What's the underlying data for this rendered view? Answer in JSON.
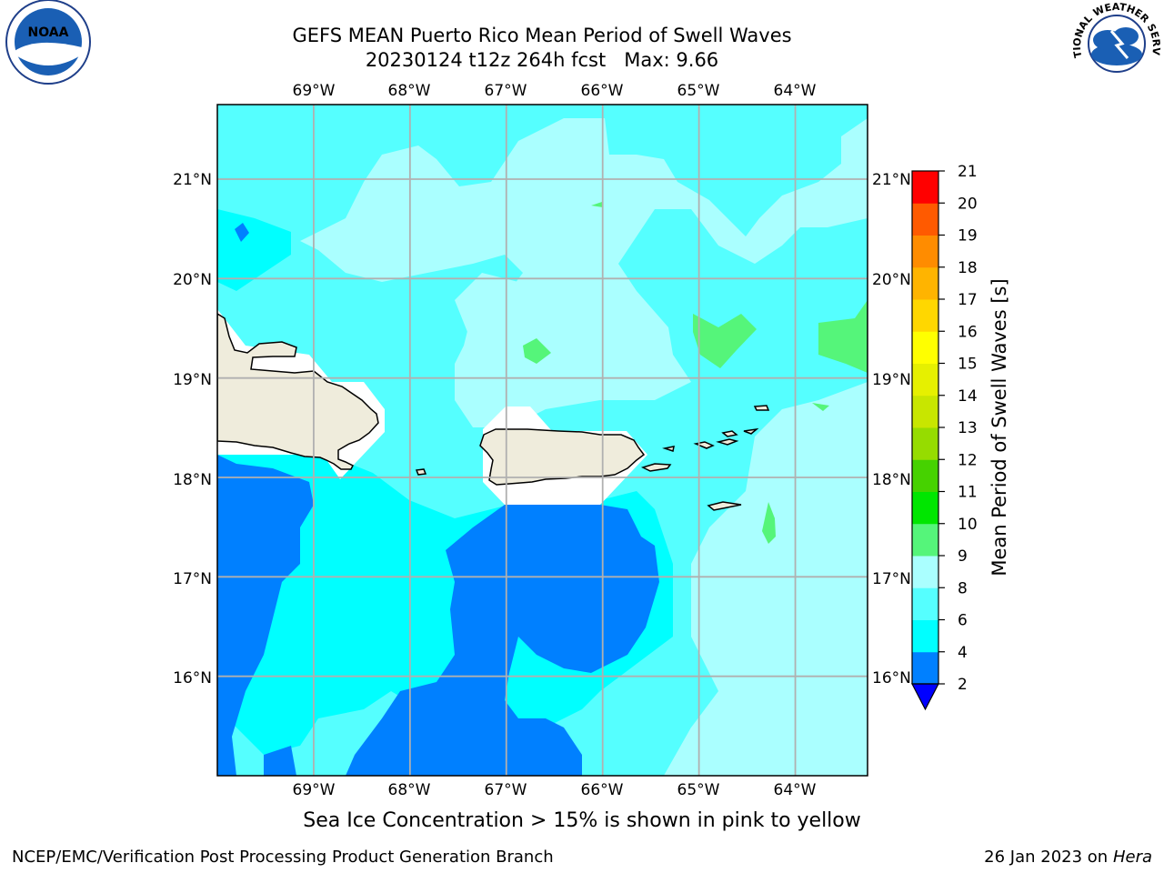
{
  "title": {
    "line1": "GEFS MEAN Puerto Rico Mean Period of Swell Waves",
    "line2": "20230124 t12z 264h fcst   Max: 9.66"
  },
  "logos": {
    "left": {
      "name": "noaa-logo",
      "text": "NOAA"
    },
    "right": {
      "name": "national-weather-service-logo",
      "text": "NATIONAL WEATHER SERVICE"
    }
  },
  "map": {
    "lon_labels": [
      "69°W",
      "68°W",
      "67°W",
      "66°W",
      "65°W",
      "64°W"
    ],
    "lat_labels": [
      "21°N",
      "20°N",
      "19°N",
      "18°N",
      "17°N",
      "16°N"
    ],
    "extent": {
      "lon": [
        -70.0,
        -63.25
      ],
      "lat": [
        15.0,
        21.75
      ]
    },
    "land_color": "#efecdc",
    "grid_color": "#b0b0b0"
  },
  "colorbar": {
    "label": "Mean Period of Swell Waves [s]",
    "ticks": [
      "2",
      "4",
      "6",
      "8",
      "9",
      "10",
      "11",
      "12",
      "13",
      "14",
      "15",
      "16",
      "17",
      "18",
      "19",
      "20",
      "21"
    ],
    "colors": [
      "#0080ff",
      "#00ffff",
      "#55ffff",
      "#aaffff",
      "#55f57a",
      "#2de22d",
      "#00e600",
      "#46d200",
      "#96dc00",
      "#c8e600",
      "#e6f000",
      "#ffff00",
      "#ffd700",
      "#ffb400",
      "#ff8c00",
      "#ff5a00",
      "#ff2800",
      "#ff0000"
    ],
    "under_color": "#0000ff"
  },
  "subtitle": "Sea Ice Concentration > 15% is shown in pink to yellow",
  "footer": {
    "left": "NCEP/EMC/Verification Post Processing Product Generation Branch",
    "right_date": "26 Jan 2023 on ",
    "right_machine": "Hera"
  }
}
